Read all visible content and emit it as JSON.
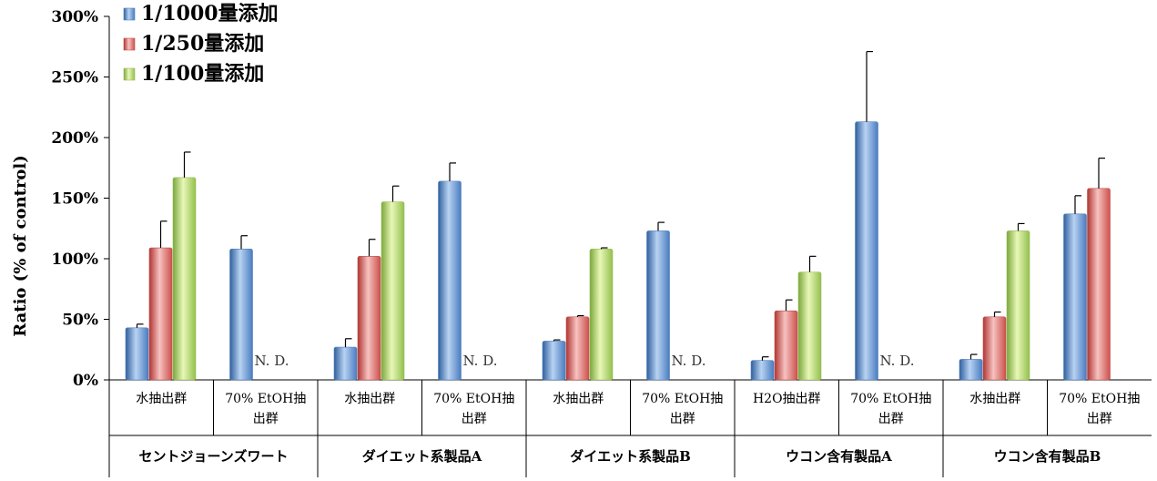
{
  "chart_data": {
    "type": "bar",
    "ylabel": "Ratio (% of control)",
    "ylim": [
      0,
      300
    ],
    "y_ticks": [
      "0%",
      "50%",
      "100%",
      "150%",
      "200%",
      "250%",
      "300%"
    ],
    "grid": false,
    "legend_position": "top-left",
    "categories": [
      "水抽出群",
      "70% EtOH抽出群",
      "水抽出群",
      "70% EtOH抽出群",
      "水抽出群",
      "70% EtOH抽出群",
      "H2O抽出群",
      "70% EtOH抽出群",
      "水抽出群",
      "70% EtOH抽出群"
    ],
    "category_lines": [
      [
        "水抽出群"
      ],
      [
        "70% EtOH抽",
        "出群"
      ],
      [
        "水抽出群"
      ],
      [
        "70% EtOH抽",
        "出群"
      ],
      [
        "水抽出群"
      ],
      [
        "70% EtOH抽",
        "出群"
      ],
      [
        "H2O抽出群"
      ],
      [
        "70% EtOH抽",
        "出群"
      ],
      [
        "水抽出群"
      ],
      [
        "70% EtOH抽",
        "出群"
      ]
    ],
    "groups": [
      "セントジョーンズワート",
      "ダイエット系製品A",
      "ダイエット系製品B",
      "ウコン含有製品A",
      "ウコン含有製品B"
    ],
    "series": [
      {
        "name": "1/1000量添加",
        "color": "#4F81BD",
        "values": [
          43,
          108,
          27,
          164,
          32,
          123,
          16,
          213,
          17,
          137
        ],
        "errors": [
          3,
          11,
          7,
          15,
          1,
          7,
          3,
          58,
          4,
          15
        ]
      },
      {
        "name": "1/250量添加",
        "color": "#C0504D",
        "values": [
          109,
          null,
          102,
          null,
          52,
          null,
          57,
          null,
          52,
          158
        ],
        "errors": [
          22,
          null,
          14,
          null,
          1,
          null,
          9,
          null,
          4,
          25
        ]
      },
      {
        "name": "1/100量添加",
        "color": "#9BBB59",
        "values": [
          167,
          null,
          147,
          null,
          108,
          null,
          89,
          null,
          123,
          null
        ],
        "errors": [
          21,
          null,
          13,
          null,
          1,
          null,
          13,
          null,
          6,
          null
        ]
      }
    ],
    "nd_label": "N. D.",
    "nd_categories": [
      1,
      3,
      5,
      7
    ]
  }
}
